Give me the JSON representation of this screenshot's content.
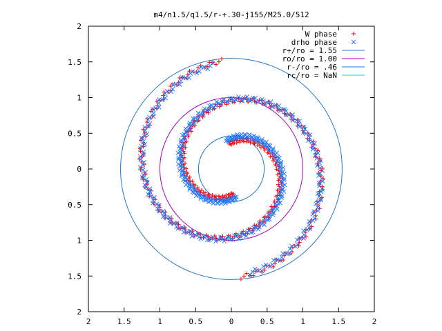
{
  "chart_data": {
    "type": "scatter",
    "title": "m4/n1.5/q1.5/r-+.30-j155/M25.0/512",
    "xlabel": "",
    "ylabel": "",
    "xlim": [
      -2,
      2
    ],
    "ylim": [
      -2,
      2
    ],
    "grid": false,
    "legend_position": "top-right",
    "x_ticks": [
      {
        "value": -2,
        "label": "2"
      },
      {
        "value": -1.5,
        "label": "1.5"
      },
      {
        "value": -1,
        "label": "1"
      },
      {
        "value": -0.5,
        "label": "0.5"
      },
      {
        "value": 0,
        "label": "0"
      },
      {
        "value": 0.5,
        "label": "0.5"
      },
      {
        "value": 1,
        "label": "1"
      },
      {
        "value": 1.5,
        "label": "1.5"
      },
      {
        "value": 2,
        "label": "2"
      }
    ],
    "y_ticks": [
      {
        "value": 2,
        "label": "2"
      },
      {
        "value": 1.5,
        "label": "1.5"
      },
      {
        "value": 1,
        "label": "1"
      },
      {
        "value": 0.5,
        "label": "0.5"
      },
      {
        "value": 0,
        "label": "0"
      },
      {
        "value": -0.5,
        "label": "0.5"
      },
      {
        "value": -1,
        "label": "1"
      },
      {
        "value": -1.5,
        "label": "1.5"
      },
      {
        "value": -2,
        "label": "2"
      }
    ],
    "series": [
      {
        "name": "W phase",
        "marker": "plus",
        "color": "#ff0000",
        "spiral_arms": [
          {
            "r_inner": 0.35,
            "r_outer": 1.52,
            "theta_start_deg": 95,
            "turn_deg": 360
          },
          {
            "r_inner": 0.35,
            "r_outer": 1.52,
            "theta_start_deg": 275,
            "turn_deg": 360
          }
        ]
      },
      {
        "name": "drho phase",
        "marker": "cross",
        "color": "#1e78ff",
        "spiral_arms": [
          {
            "r_inner": 0.4,
            "r_outer": 1.48,
            "theta_start_deg": 100,
            "turn_deg": 360
          },
          {
            "r_inner": 0.4,
            "r_outer": 1.48,
            "theta_start_deg": 280,
            "turn_deg": 360
          }
        ]
      },
      {
        "name": "r+/ro = 1.55",
        "type": "circle",
        "radius": 1.55,
        "color": "#1e78c8"
      },
      {
        "name": "ro/ro = 1.00",
        "type": "circle",
        "radius": 1.0,
        "color": "#a000c0"
      },
      {
        "name": "r-/ro = .46",
        "type": "circle",
        "radius": 0.46,
        "color": "#1e78c8"
      },
      {
        "name": "rc/ro = NaN",
        "type": "circle",
        "radius": null,
        "color": "#28c8e0"
      }
    ]
  }
}
